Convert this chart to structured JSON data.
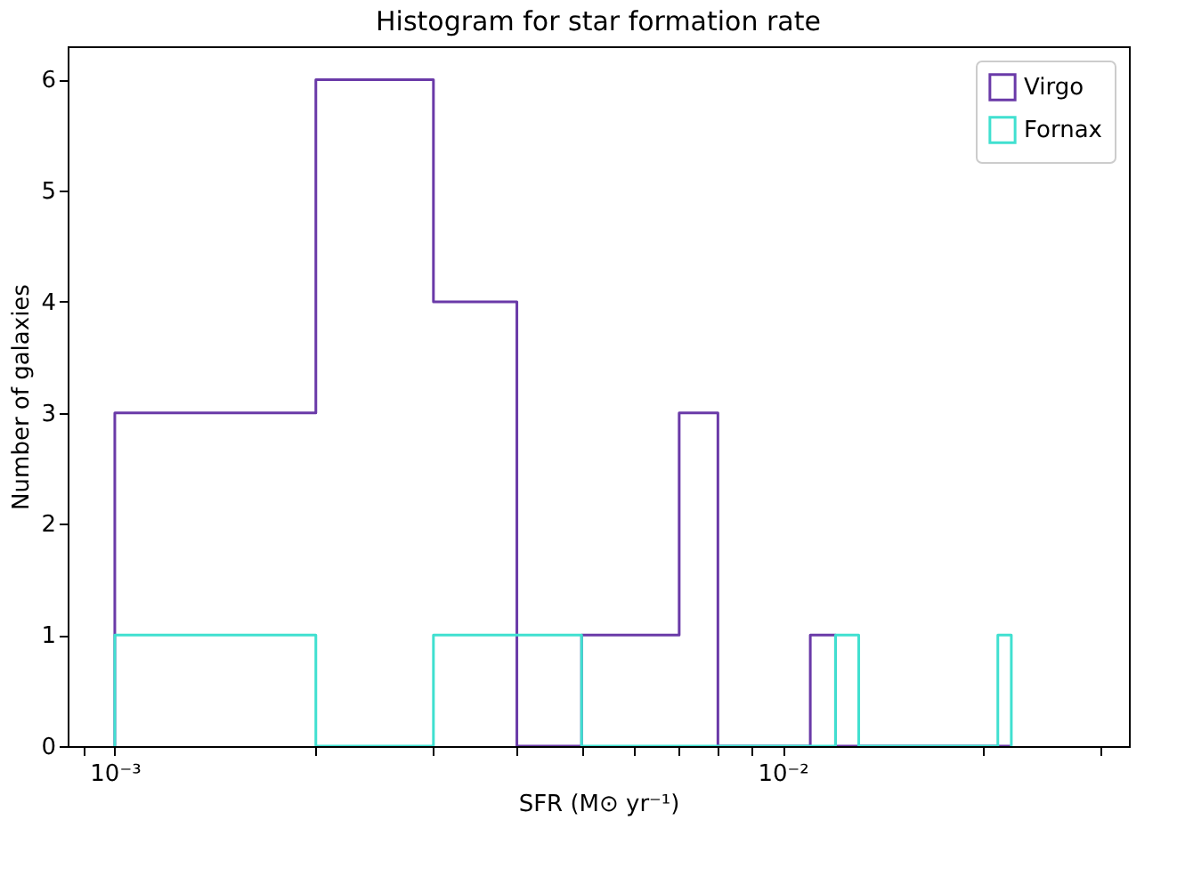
{
  "chart_data": {
    "type": "histogram",
    "title": "Histogram for star formation rate",
    "xlabel": "SFR (M⊙ yr⁻¹)",
    "ylabel": "Number of galaxies",
    "bins": [
      0.001,
      0.002,
      0.003,
      0.004,
      0.005,
      0.006,
      0.007,
      0.008,
      0.009,
      0.01,
      0.011,
      0.012,
      0.013,
      0.014,
      0.015,
      0.016,
      0.017,
      0.018,
      0.019,
      0.02,
      0.021,
      0.022
    ],
    "series": [
      {
        "name": "Virgo",
        "color": "#6a3aa8",
        "values": [
          3,
          6,
          4,
          0,
          1,
          1,
          3,
          0,
          0,
          0,
          1,
          0,
          0,
          0,
          0,
          0,
          0,
          0,
          0,
          0,
          0
        ]
      },
      {
        "name": "Fornax",
        "color": "#40e0d0",
        "values": [
          1,
          0,
          1,
          1,
          0,
          0,
          0,
          0,
          0,
          0,
          0,
          1,
          0,
          0,
          0,
          0,
          0,
          0,
          0,
          0,
          1
        ]
      }
    ],
    "log": "x",
    "xlim": [
      0.00085,
      0.033
    ],
    "xticks": [
      {
        "value": 0.0009,
        "label": null
      },
      {
        "value": 0.001,
        "label": "10⁻³"
      },
      {
        "value": 0.002,
        "label": null
      },
      {
        "value": 0.003,
        "label": null
      },
      {
        "value": 0.004,
        "label": null
      },
      {
        "value": 0.005,
        "label": null
      },
      {
        "value": 0.006,
        "label": null
      },
      {
        "value": 0.007,
        "label": null
      },
      {
        "value": 0.008,
        "label": null
      },
      {
        "value": 0.009,
        "label": null
      },
      {
        "value": 0.01,
        "label": "10⁻²"
      },
      {
        "value": 0.02,
        "label": null
      },
      {
        "value": 0.03,
        "label": null
      }
    ],
    "ylim": [
      0,
      6.3
    ],
    "yticks": [
      0,
      1,
      2,
      3,
      4,
      5,
      6
    ],
    "grid": false,
    "legend": "top right"
  }
}
